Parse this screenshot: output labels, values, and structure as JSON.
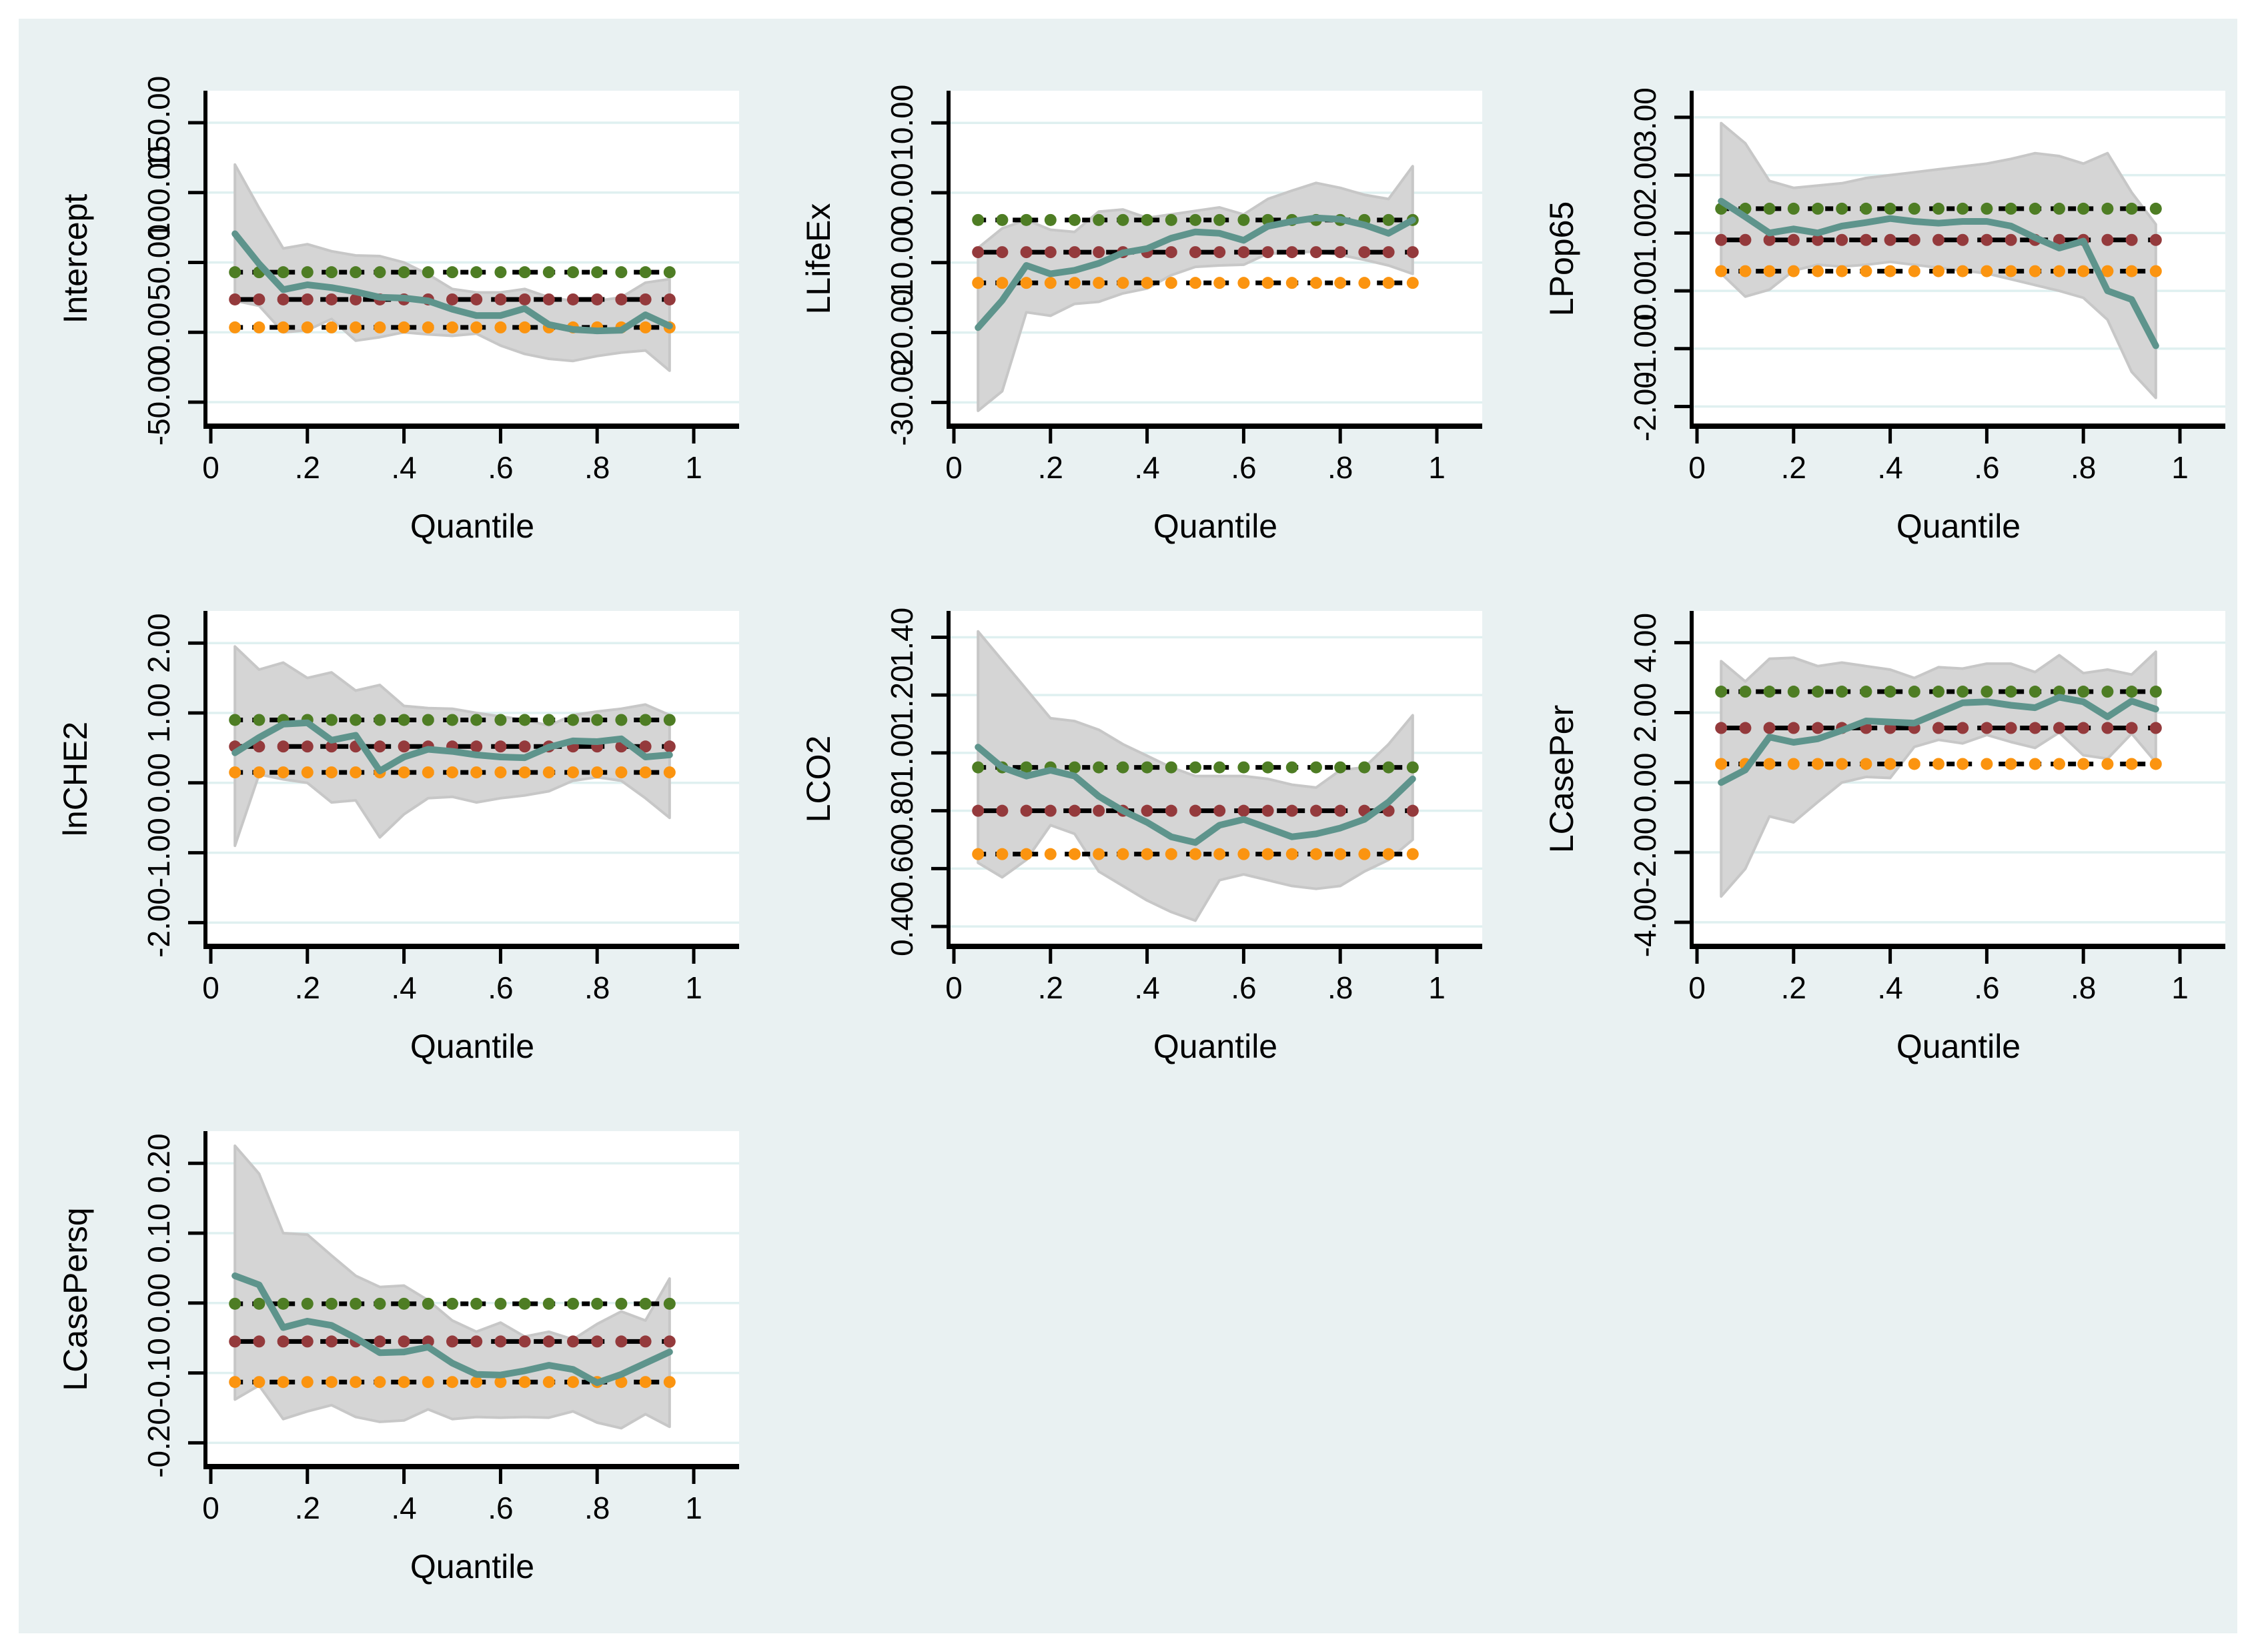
{
  "figure": {
    "canvas_color": "#e9f1f2",
    "plot_background": "#ffffff",
    "outer_border_color": "#ffffff"
  },
  "colors": {
    "grid": "#dff0f0",
    "band": "#d5d5d5",
    "band_edge": "#c7c7c7",
    "qr_line": "#5e948c",
    "ols_dot": "#943a3c",
    "ci_upper_dot": "#4e7d24",
    "ci_lower_dot": "#fb9410",
    "dash": "#000000",
    "axis": "#000000"
  },
  "quantiles": [
    0.05,
    0.1,
    0.15,
    0.2,
    0.25,
    0.3,
    0.35,
    0.4,
    0.45,
    0.5,
    0.55,
    0.6,
    0.65,
    0.7,
    0.75,
    0.8,
    0.85,
    0.9,
    0.95
  ],
  "x_axis": {
    "label": "Quantile",
    "tick_labels": [
      "0",
      ".2",
      ".4",
      ".6",
      ".8",
      "1"
    ],
    "tick_values": [
      0,
      0.2,
      0.4,
      0.6,
      0.8,
      1
    ]
  },
  "chart_data": [
    {
      "type": "line",
      "ylabel": "Intercept",
      "xlabel": "Quantile",
      "ylim": [
        -67.2,
        172.9
      ],
      "y_tick_values": [
        150,
        100,
        50,
        0,
        -50
      ],
      "y_tick_labels": [
        "150.00",
        "100.00",
        "50.00",
        "0.00",
        "-50.00"
      ],
      "series": {
        "qr": [
          70.5,
          49,
          30.5,
          34,
          32,
          29,
          25,
          24.5,
          22.5,
          16.5,
          12,
          12,
          17,
          5.5,
          2,
          1,
          1.5,
          12.5,
          4.5
        ],
        "ci_upper": [
          120,
          89,
          60,
          63,
          58,
          55,
          54.5,
          50,
          41.5,
          31,
          28.5,
          28.5,
          31,
          25,
          22.5,
          22.5,
          25,
          35.5,
          38
        ],
        "ci_lower": [
          22.5,
          19,
          0,
          1.5,
          9.5,
          -6,
          -3.5,
          0,
          -1.5,
          -2.5,
          -1,
          -9.5,
          -15.5,
          -19,
          -20.5,
          -17,
          -14.5,
          -13,
          -27.5
        ],
        "ols": 23.5,
        "ols_ci_upper": 43,
        "ols_ci_lower": 3.5
      }
    },
    {
      "type": "line",
      "ylabel": "LLifeEx",
      "xlabel": "Quantile",
      "ylim": [
        -33.4,
        14.6
      ],
      "y_tick_values": [
        10,
        0,
        -10,
        -20,
        -30
      ],
      "y_tick_labels": [
        "10.00",
        "0.00",
        "-10.00",
        "-20.00",
        "-30.00"
      ],
      "series": {
        "qr": [
          -19.3,
          -15.4,
          -10.4,
          -11.6,
          -11.1,
          -10.1,
          -8.6,
          -8.0,
          -6.5,
          -5.6,
          -5.8,
          -6.8,
          -4.8,
          -4.1,
          -3.6,
          -3.8,
          -4.6,
          -5.8,
          -3.9
        ],
        "ci_upper": [
          -7.9,
          -5.1,
          -3.9,
          -5.3,
          -5.6,
          -2.7,
          -2.4,
          -3.6,
          -3.1,
          -2.6,
          -2.1,
          -3.1,
          -0.9,
          0.3,
          1.4,
          0.7,
          -0.3,
          -0.9,
          3.8
        ],
        "ci_lower": [
          -31.2,
          -28.4,
          -17.1,
          -17.6,
          -15.9,
          -15.6,
          -14.4,
          -13.7,
          -11.8,
          -10.6,
          -10.4,
          -10.3,
          -8.7,
          -8.6,
          -8.4,
          -8.9,
          -9.6,
          -10.4,
          -11.6
        ],
        "ols": -8.5,
        "ols_ci_upper": -3.9,
        "ols_ci_lower": -12.9
      }
    },
    {
      "type": "line",
      "ylabel": "LPop65",
      "xlabel": "Quantile",
      "ylim": [
        -2.34,
        3.46
      ],
      "y_tick_values": [
        3,
        2,
        1,
        0,
        -1,
        -2
      ],
      "y_tick_labels": [
        "3.00",
        "2.00",
        "1.00",
        "0.00",
        "-1.00",
        "-2.00"
      ],
      "series": {
        "qr": [
          1.55,
          1.28,
          1.0,
          1.07,
          1.0,
          1.12,
          1.18,
          1.25,
          1.2,
          1.17,
          1.2,
          1.2,
          1.12,
          0.92,
          0.74,
          0.86,
          0.0,
          -0.15,
          -0.95
        ],
        "ci_upper": [
          2.9,
          2.55,
          1.9,
          1.78,
          1.82,
          1.86,
          1.95,
          2.0,
          2.05,
          2.1,
          2.15,
          2.2,
          2.28,
          2.38,
          2.33,
          2.2,
          2.38,
          1.7,
          1.15
        ],
        "ci_lower": [
          0.3,
          -0.1,
          0.02,
          0.35,
          0.45,
          0.42,
          0.45,
          0.5,
          0.45,
          0.4,
          0.35,
          0.3,
          0.2,
          0.1,
          0.0,
          -0.12,
          -0.5,
          -1.4,
          -1.85
        ],
        "ols": 0.88,
        "ols_ci_upper": 1.42,
        "ols_ci_lower": 0.34
      }
    },
    {
      "type": "line",
      "ylabel": "lnCHE2",
      "xlabel": "Quantile",
      "ylim": [
        -2.34,
        2.46
      ],
      "y_tick_values": [
        2,
        1,
        0,
        -1,
        -2
      ],
      "y_tick_labels": [
        "2.00",
        "1.00",
        "0.00",
        "-1.00",
        "-2.00"
      ],
      "series": {
        "qr": [
          0.43,
          0.65,
          0.84,
          0.86,
          0.61,
          0.68,
          0.17,
          0.37,
          0.48,
          0.45,
          0.4,
          0.37,
          0.36,
          0.51,
          0.6,
          0.59,
          0.63,
          0.37,
          0.4
        ],
        "ci_upper": [
          1.95,
          1.62,
          1.72,
          1.5,
          1.58,
          1.32,
          1.4,
          1.1,
          1.07,
          1.06,
          1.0,
          0.95,
          0.9,
          0.82,
          0.97,
          1.02,
          1.06,
          1.12,
          0.97
        ],
        "ci_lower": [
          -0.9,
          0.12,
          0.05,
          0.0,
          -0.28,
          -0.25,
          -0.78,
          -0.45,
          -0.22,
          -0.2,
          -0.28,
          -0.22,
          -0.18,
          -0.12,
          0.03,
          0.08,
          0.03,
          -0.22,
          -0.5
        ],
        "ols": 0.52,
        "ols_ci_upper": 0.9,
        "ols_ci_lower": 0.15
      }
    },
    {
      "type": "line",
      "ylabel": "LCO2",
      "xlabel": "Quantile",
      "ylim": [
        0.331,
        1.491
      ],
      "y_tick_values": [
        1.4,
        1.2,
        1.0,
        0.8,
        0.6,
        0.4
      ],
      "y_tick_labels": [
        "1.40",
        "1.20",
        "1.00",
        "0.80",
        "0.60",
        "0.40"
      ],
      "series": {
        "qr": [
          1.02,
          0.95,
          0.92,
          0.94,
          0.92,
          0.85,
          0.8,
          0.76,
          0.71,
          0.69,
          0.75,
          0.77,
          0.74,
          0.71,
          0.72,
          0.74,
          0.77,
          0.83,
          0.91
        ],
        "ci_upper": [
          1.42,
          1.32,
          1.22,
          1.12,
          1.11,
          1.08,
          1.03,
          0.99,
          0.95,
          0.92,
          0.92,
          0.92,
          0.91,
          0.89,
          0.88,
          0.94,
          0.95,
          1.03,
          1.13
        ],
        "ci_lower": [
          0.62,
          0.57,
          0.63,
          0.75,
          0.72,
          0.59,
          0.54,
          0.49,
          0.45,
          0.42,
          0.56,
          0.58,
          0.56,
          0.54,
          0.53,
          0.54,
          0.59,
          0.63,
          0.7
        ],
        "ols": 0.8,
        "ols_ci_upper": 0.95,
        "ols_ci_lower": 0.65
      }
    },
    {
      "type": "line",
      "ylabel": "LCasePer",
      "xlabel": "Quantile",
      "ylim": [
        -4.69,
        4.91
      ],
      "y_tick_values": [
        4,
        2,
        0,
        -2,
        -4
      ],
      "y_tick_labels": [
        "4.00",
        "2.00",
        "0.00",
        "-2.00",
        "-4.00"
      ],
      "series": {
        "qr": [
          0.0,
          0.36,
          1.3,
          1.15,
          1.25,
          1.49,
          1.76,
          1.73,
          1.7,
          1.99,
          2.28,
          2.31,
          2.21,
          2.14,
          2.44,
          2.31,
          1.88,
          2.33,
          2.1
        ],
        "ci_upper": [
          3.47,
          2.89,
          3.54,
          3.57,
          3.33,
          3.43,
          3.33,
          3.23,
          2.99,
          3.3,
          3.26,
          3.4,
          3.4,
          3.16,
          3.64,
          3.13,
          3.23,
          3.09,
          3.74
        ],
        "ci_lower": [
          -3.26,
          -2.47,
          -0.97,
          -1.14,
          -0.56,
          0.0,
          0.16,
          0.13,
          1.02,
          1.22,
          1.12,
          1.36,
          1.16,
          0.99,
          1.43,
          0.78,
          0.68,
          1.4,
          0.58
        ],
        "ols": 1.56,
        "ols_ci_upper": 2.6,
        "ols_ci_lower": 0.53
      }
    },
    {
      "type": "line",
      "ylabel": "LCasePersq",
      "xlabel": "Quantile",
      "ylim": [
        -0.234,
        0.246
      ],
      "y_tick_values": [
        0.2,
        0.1,
        0.0,
        -0.1,
        -0.2
      ],
      "y_tick_labels": [
        "0.20",
        "0.10",
        "0.00",
        "-0.10",
        "-0.20"
      ],
      "series": {
        "qr": [
          0.039,
          0.026,
          -0.035,
          -0.026,
          -0.032,
          -0.05,
          -0.071,
          -0.07,
          -0.063,
          -0.086,
          -0.102,
          -0.103,
          -0.097,
          -0.089,
          -0.095,
          -0.114,
          -0.102,
          -0.086,
          -0.07
        ],
        "ci_upper": [
          0.225,
          0.185,
          0.1,
          0.098,
          0.068,
          0.039,
          0.023,
          0.025,
          0.004,
          -0.025,
          -0.041,
          -0.028,
          -0.048,
          -0.041,
          -0.052,
          -0.03,
          -0.012,
          -0.025,
          0.035
        ],
        "ci_lower": [
          -0.138,
          -0.118,
          -0.166,
          -0.155,
          -0.146,
          -0.163,
          -0.17,
          -0.168,
          -0.152,
          -0.166,
          -0.163,
          -0.164,
          -0.163,
          -0.164,
          -0.155,
          -0.171,
          -0.179,
          -0.159,
          -0.177
        ],
        "ols": -0.055,
        "ols_ci_upper": -0.001,
        "ols_ci_lower": -0.113
      }
    }
  ]
}
